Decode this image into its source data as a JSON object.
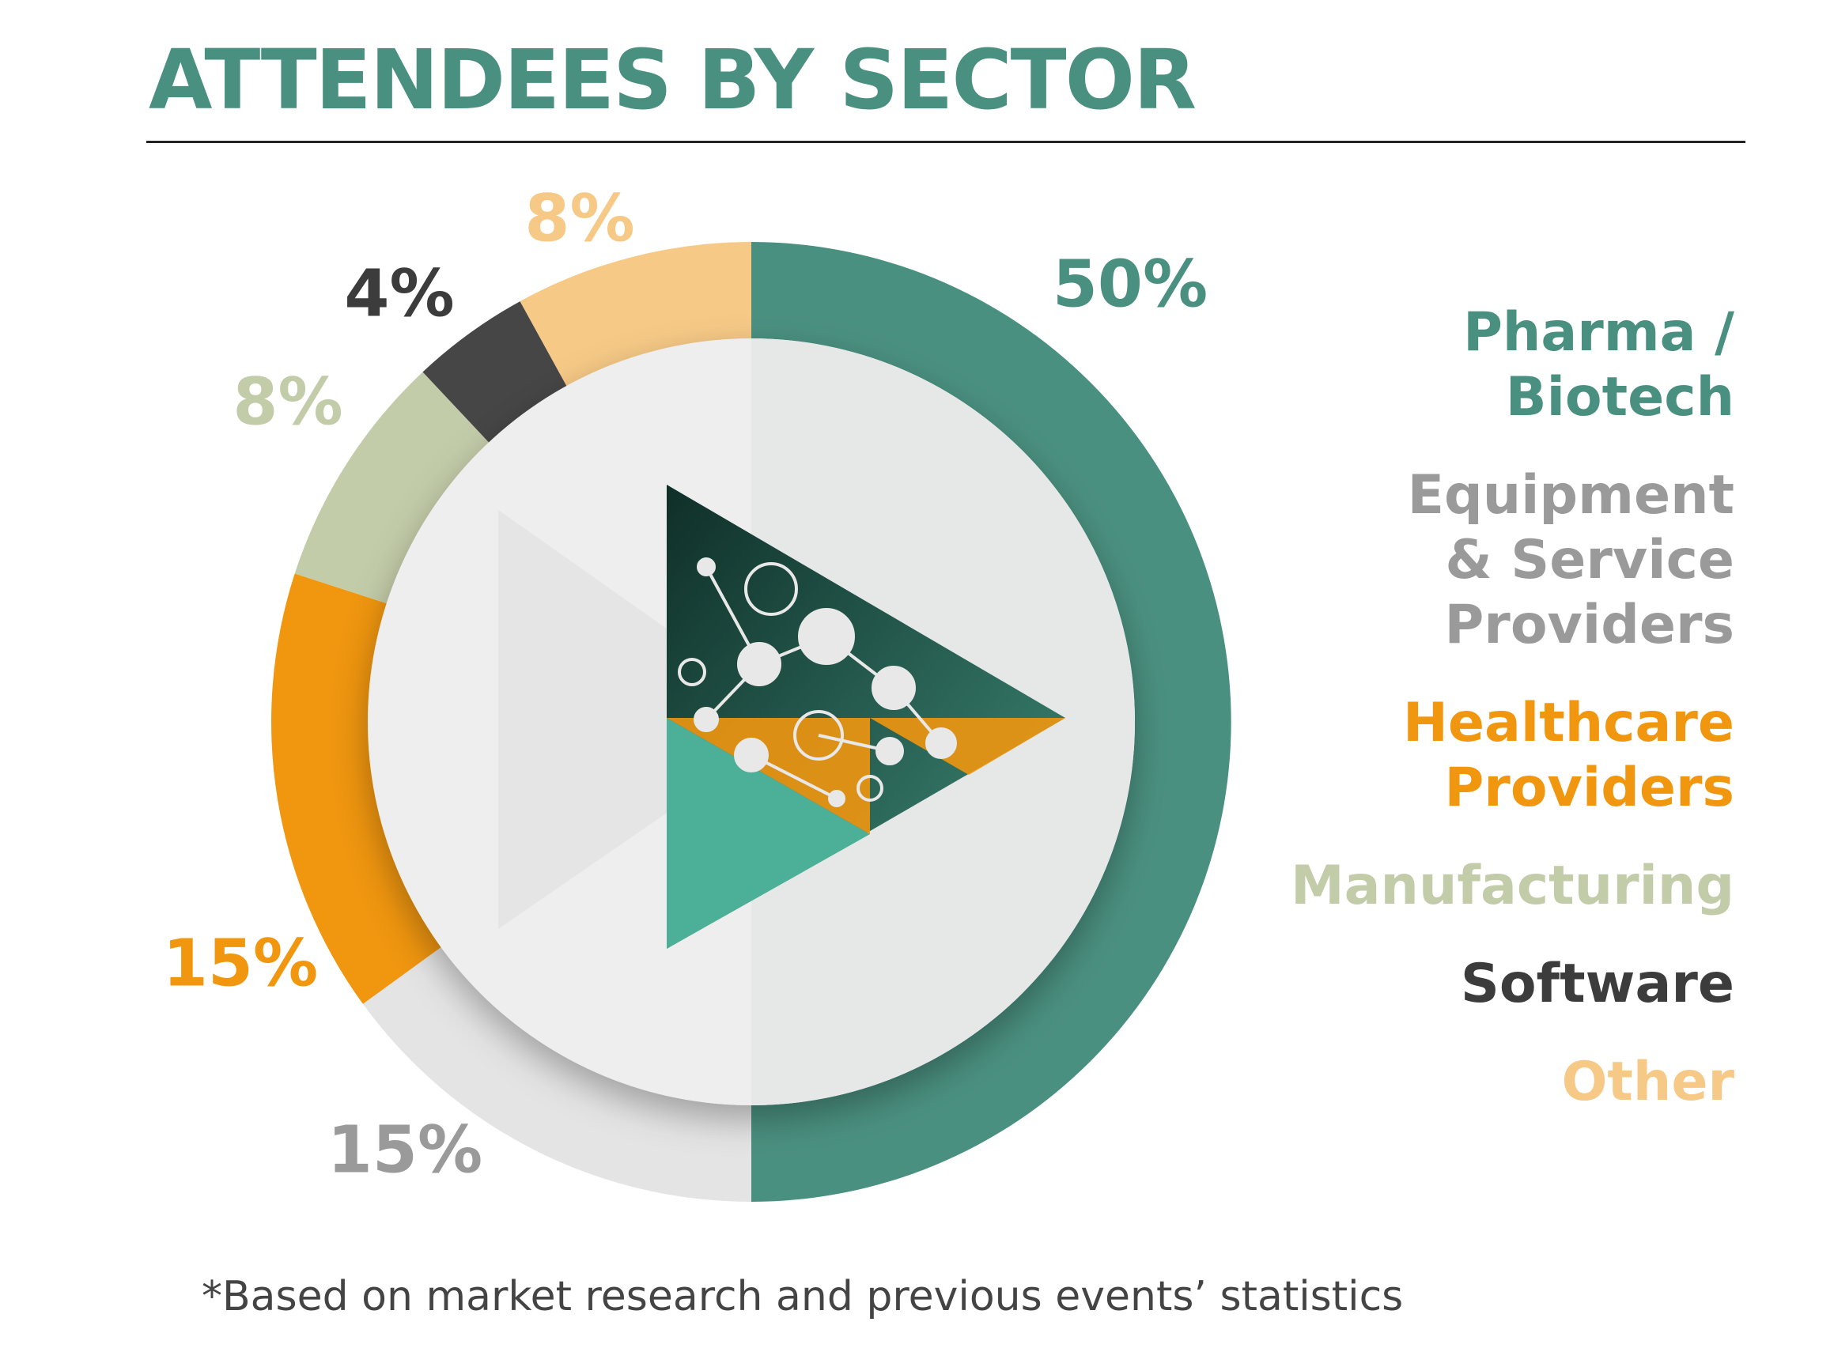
{
  "chart_data": {
    "type": "pie",
    "title": "ATTENDEES BY SECTOR",
    "categories": [
      "Pharma /\nBiotech",
      "Equipment\n& Service\nProviders",
      "Healthcare\nProviders",
      "Manufacturing",
      "Software",
      "Other"
    ],
    "values": [
      50,
      15,
      15,
      8,
      4,
      8
    ],
    "value_labels": [
      "50%",
      "15%",
      "15%",
      "8%",
      "4%",
      "8%"
    ],
    "colors": [
      "#4a9080",
      "#e4e4e4",
      "#f0960f",
      "#c3cca9",
      "#464646",
      "#f6c986"
    ],
    "label_colors": [
      "#4a9080",
      "#9a9a9a",
      "#f0960f",
      "#c3cca9",
      "#3c3c3c",
      "#f6c986"
    ],
    "note": "*Based on market research and previous events’ statistics"
  }
}
